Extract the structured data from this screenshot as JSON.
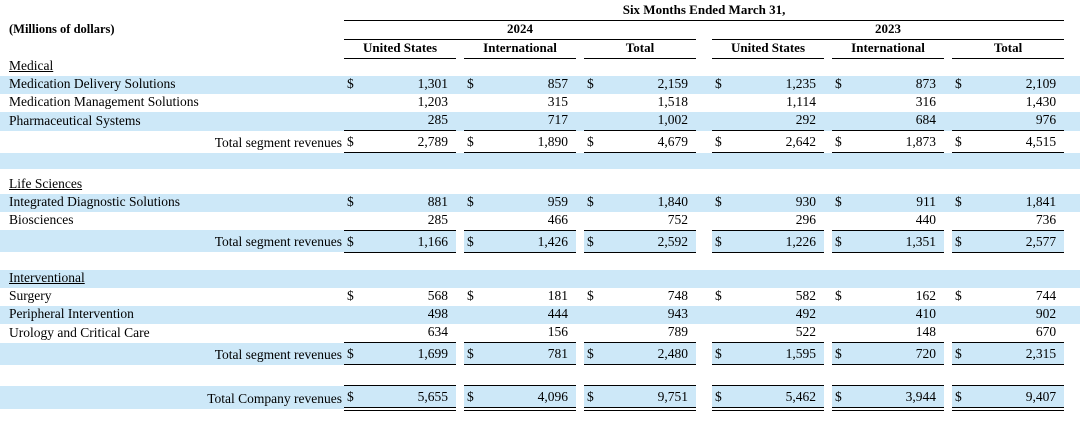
{
  "table": {
    "units_label": "(Millions of dollars)",
    "period_header": "Six Months Ended March 31,",
    "year_groups": [
      "2024",
      "2023"
    ],
    "column_headers": [
      "United States",
      "International",
      "Total"
    ],
    "currency_symbol": "$",
    "stripe_color": "#cde8f8",
    "sections": [
      {
        "title": "Medical",
        "title_shaded": false,
        "rows": [
          {
            "label": "Medication Delivery Solutions",
            "dollar": true,
            "shaded": true,
            "values": [
              "1,301",
              "857",
              "2,159",
              "1,235",
              "873",
              "2,109"
            ]
          },
          {
            "label": "Medication Management Solutions",
            "dollar": false,
            "shaded": false,
            "values": [
              "1,203",
              "315",
              "1,518",
              "1,114",
              "316",
              "1,430"
            ]
          },
          {
            "label": "Pharmaceutical Systems",
            "dollar": false,
            "shaded": true,
            "values": [
              "285",
              "717",
              "1,002",
              "292",
              "684",
              "976"
            ]
          }
        ],
        "total_row": {
          "label": "Total segment revenues",
          "dollar": true,
          "shaded": false,
          "values": [
            "2,789",
            "1,890",
            "4,679",
            "2,642",
            "1,873",
            "4,515"
          ]
        },
        "spacers_after": [
          {
            "shaded": true,
            "height": 16
          },
          {
            "shaded": false,
            "height": 7
          }
        ]
      },
      {
        "title": "Life Sciences",
        "title_shaded": false,
        "rows": [
          {
            "label": "Integrated Diagnostic Solutions",
            "dollar": true,
            "shaded": true,
            "values": [
              "881",
              "959",
              "1,840",
              "930",
              "911",
              "1,841"
            ]
          },
          {
            "label": "Biosciences",
            "dollar": false,
            "shaded": false,
            "values": [
              "285",
              "466",
              "752",
              "296",
              "440",
              "736"
            ]
          }
        ],
        "total_row": {
          "label": "Total segment revenues",
          "dollar": true,
          "shaded": true,
          "values": [
            "1,166",
            "1,426",
            "2,592",
            "1,226",
            "1,351",
            "2,577"
          ]
        },
        "spacers_after": [
          {
            "shaded": false,
            "height": 18
          }
        ]
      },
      {
        "title": "Interventional",
        "title_shaded": true,
        "rows": [
          {
            "label": "Surgery",
            "dollar": true,
            "shaded": false,
            "values": [
              "568",
              "181",
              "748",
              "582",
              "162",
              "744"
            ]
          },
          {
            "label": "Peripheral Intervention",
            "dollar": false,
            "shaded": true,
            "values": [
              "498",
              "444",
              "943",
              "492",
              "410",
              "902"
            ]
          },
          {
            "label": "Urology and Critical Care",
            "dollar": false,
            "shaded": false,
            "values": [
              "634",
              "156",
              "789",
              "522",
              "148",
              "670"
            ]
          }
        ],
        "total_row": {
          "label": "Total segment revenues",
          "dollar": true,
          "shaded": true,
          "values": [
            "1,699",
            "781",
            "2,480",
            "1,595",
            "720",
            "2,315"
          ]
        },
        "spacers_after": [
          {
            "shaded": false,
            "height": 21
          }
        ]
      }
    ],
    "company_total": {
      "label": "Total Company revenues",
      "dollar": true,
      "shaded": true,
      "values": [
        "5,655",
        "4,096",
        "9,751",
        "5,462",
        "3,944",
        "9,407"
      ]
    }
  }
}
